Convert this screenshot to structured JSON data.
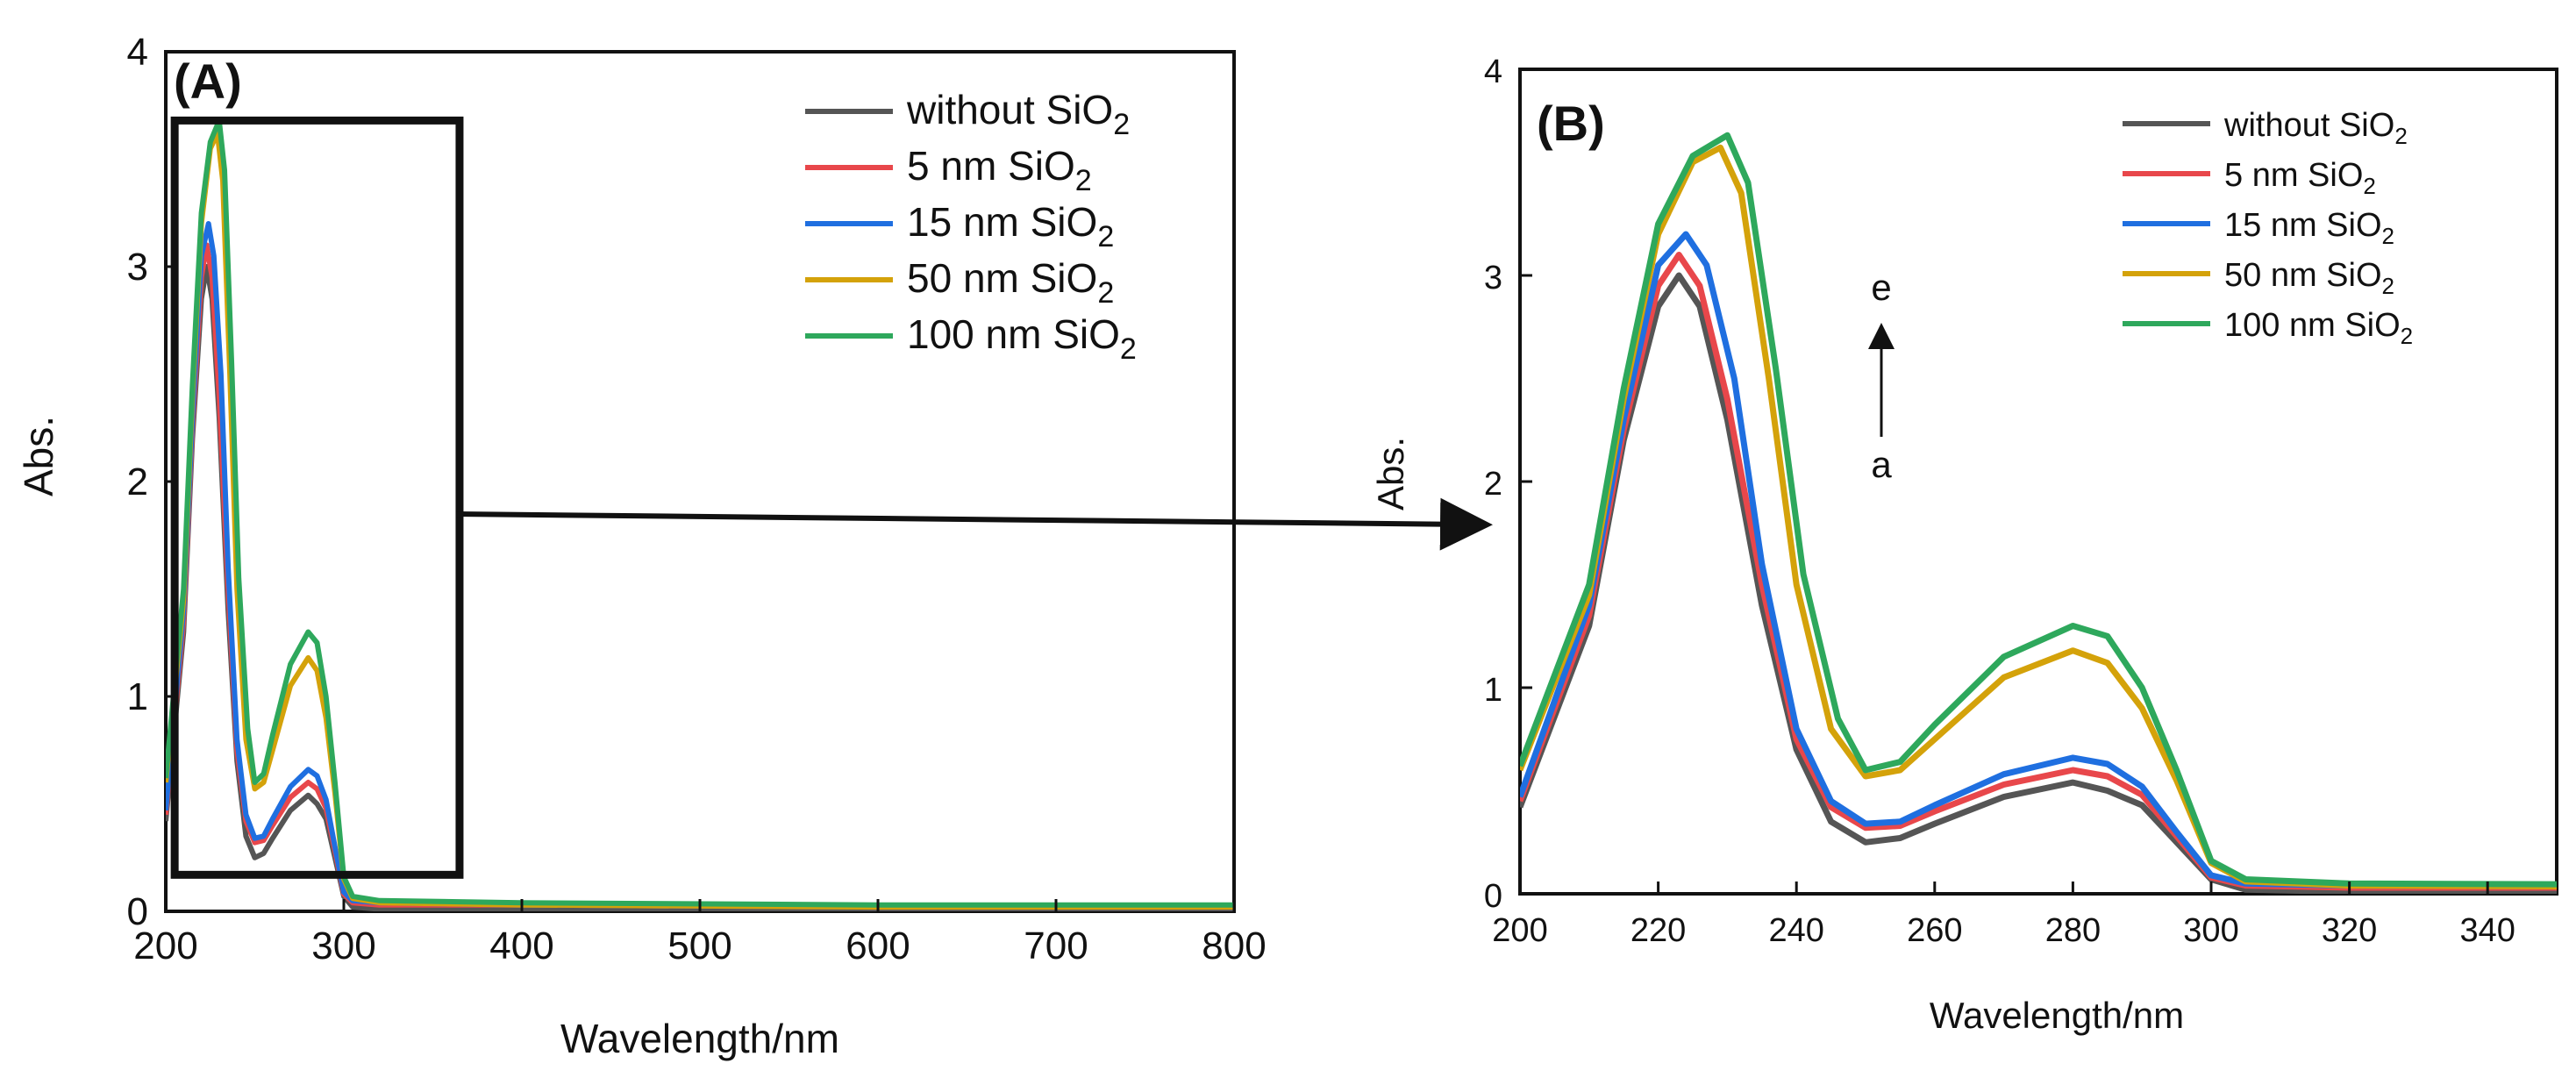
{
  "chart_data": [
    {
      "type": "line",
      "panel_label": "(A)",
      "xlabel": "Wavelength/nm",
      "ylabel": "Abs.",
      "xlim": [
        200,
        800
      ],
      "ylim": [
        0,
        4
      ],
      "xticks": [
        200,
        300,
        400,
        500,
        600,
        700,
        800
      ],
      "yticks": [
        0,
        1,
        2,
        3,
        4
      ],
      "legend_position": "top-right",
      "zoom_box": {
        "x_range": [
          205,
          365
        ],
        "y_range": [
          0.17,
          3.68
        ]
      },
      "series": [
        {
          "name": "without SiO2",
          "label_main": "without SiO",
          "label_sub": "2",
          "color": "#555555",
          "points": [
            [
              200,
              0.42
            ],
            [
              210,
              1.3
            ],
            [
              215,
              2.2
            ],
            [
              220,
              2.85
            ],
            [
              223,
              3.0
            ],
            [
              226,
              2.85
            ],
            [
              230,
              2.3
            ],
            [
              235,
              1.4
            ],
            [
              240,
              0.7
            ],
            [
              245,
              0.35
            ],
            [
              250,
              0.25
            ],
            [
              255,
              0.27
            ],
            [
              260,
              0.34
            ],
            [
              270,
              0.47
            ],
            [
              280,
              0.54
            ],
            [
              285,
              0.5
            ],
            [
              290,
              0.43
            ],
            [
              295,
              0.25
            ],
            [
              300,
              0.07
            ],
            [
              305,
              0.02
            ],
            [
              320,
              0.01
            ],
            [
              400,
              0.01
            ],
            [
              600,
              0.01
            ],
            [
              800,
              0.0
            ]
          ]
        },
        {
          "name": "5 nm SiO2",
          "label_main": "5 nm SiO",
          "label_sub": "2",
          "color": "#e8474b",
          "points": [
            [
              200,
              0.45
            ],
            [
              210,
              1.35
            ],
            [
              215,
              2.25
            ],
            [
              220,
              2.95
            ],
            [
              223,
              3.1
            ],
            [
              226,
              2.95
            ],
            [
              230,
              2.4
            ],
            [
              235,
              1.5
            ],
            [
              240,
              0.75
            ],
            [
              245,
              0.42
            ],
            [
              250,
              0.32
            ],
            [
              255,
              0.33
            ],
            [
              260,
              0.4
            ],
            [
              270,
              0.53
            ],
            [
              280,
              0.6
            ],
            [
              285,
              0.57
            ],
            [
              290,
              0.48
            ],
            [
              295,
              0.28
            ],
            [
              300,
              0.08
            ],
            [
              305,
              0.04
            ],
            [
              320,
              0.03
            ],
            [
              400,
              0.03
            ],
            [
              600,
              0.02
            ],
            [
              800,
              0.02
            ]
          ]
        },
        {
          "name": "15 nm SiO2",
          "label_main": "15 nm SiO",
          "label_sub": "2",
          "color": "#1f6fe0",
          "points": [
            [
              200,
              0.47
            ],
            [
              210,
              1.4
            ],
            [
              215,
              2.3
            ],
            [
              220,
              3.05
            ],
            [
              224,
              3.2
            ],
            [
              227,
              3.05
            ],
            [
              231,
              2.5
            ],
            [
              235,
              1.6
            ],
            [
              240,
              0.8
            ],
            [
              245,
              0.45
            ],
            [
              250,
              0.34
            ],
            [
              255,
              0.35
            ],
            [
              260,
              0.43
            ],
            [
              270,
              0.58
            ],
            [
              280,
              0.66
            ],
            [
              285,
              0.63
            ],
            [
              290,
              0.52
            ],
            [
              295,
              0.3
            ],
            [
              300,
              0.09
            ],
            [
              305,
              0.05
            ],
            [
              320,
              0.04
            ],
            [
              400,
              0.03
            ],
            [
              600,
              0.02
            ],
            [
              800,
              0.02
            ]
          ]
        },
        {
          "name": "50 nm SiO2",
          "label_main": "50 nm SiO",
          "label_sub": "2",
          "color": "#d4a20a",
          "points": [
            [
              200,
              0.6
            ],
            [
              210,
              1.45
            ],
            [
              215,
              2.4
            ],
            [
              220,
              3.2
            ],
            [
              225,
              3.55
            ],
            [
              229,
              3.62
            ],
            [
              232,
              3.4
            ],
            [
              236,
              2.5
            ],
            [
              240,
              1.5
            ],
            [
              245,
              0.8
            ],
            [
              250,
              0.57
            ],
            [
              255,
              0.6
            ],
            [
              260,
              0.75
            ],
            [
              270,
              1.05
            ],
            [
              280,
              1.18
            ],
            [
              285,
              1.12
            ],
            [
              290,
              0.9
            ],
            [
              295,
              0.55
            ],
            [
              300,
              0.15
            ],
            [
              305,
              0.06
            ],
            [
              320,
              0.04
            ],
            [
              400,
              0.03
            ],
            [
              600,
              0.02
            ],
            [
              800,
              0.02
            ]
          ]
        },
        {
          "name": "100 nm SiO2",
          "label_main": "100 nm SiO",
          "label_sub": "2",
          "color": "#2ea85c",
          "points": [
            [
              200,
              0.62
            ],
            [
              210,
              1.5
            ],
            [
              215,
              2.45
            ],
            [
              220,
              3.25
            ],
            [
              225,
              3.58
            ],
            [
              230,
              3.68
            ],
            [
              233,
              3.45
            ],
            [
              237,
              2.55
            ],
            [
              241,
              1.55
            ],
            [
              246,
              0.85
            ],
            [
              250,
              0.6
            ],
            [
              255,
              0.64
            ],
            [
              260,
              0.82
            ],
            [
              270,
              1.15
            ],
            [
              280,
              1.3
            ],
            [
              285,
              1.25
            ],
            [
              290,
              1.0
            ],
            [
              295,
              0.6
            ],
            [
              300,
              0.16
            ],
            [
              305,
              0.07
            ],
            [
              320,
              0.05
            ],
            [
              400,
              0.04
            ],
            [
              600,
              0.03
            ],
            [
              800,
              0.03
            ]
          ]
        }
      ]
    },
    {
      "type": "line",
      "panel_label": "(B)",
      "xlabel": "Wavelength/nm",
      "ylabel": "Abs.",
      "xlim": [
        200,
        350
      ],
      "ylim": [
        0,
        4
      ],
      "xticks": [
        200,
        220,
        240,
        260,
        280,
        300,
        320,
        340
      ],
      "yticks": [
        0,
        1,
        2,
        3,
        4
      ],
      "legend_position": "top-right",
      "annotation": {
        "top": "e",
        "bottom": "a"
      },
      "series_ref": "same series as panel (A)"
    }
  ]
}
